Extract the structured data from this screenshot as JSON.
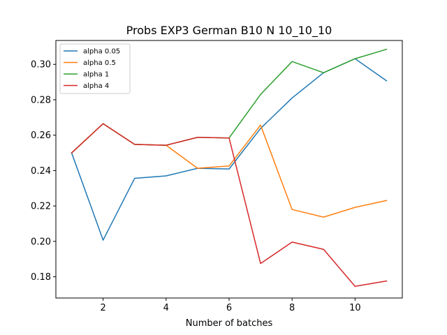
{
  "chart_data": {
    "type": "line",
    "title": "Probs EXP3 German B10 N 10_10_10",
    "xlabel": "Number of batches",
    "ylabel": "",
    "xlim": [
      0.5,
      11.5
    ],
    "ylim": [
      0.168,
      0.3135
    ],
    "xticks": [
      2,
      4,
      6,
      8,
      10
    ],
    "yticks": [
      0.18,
      0.2,
      0.22,
      0.24,
      0.26,
      0.28,
      0.3
    ],
    "ytick_labels": [
      "0.18",
      "0.20",
      "0.22",
      "0.24",
      "0.26",
      "0.28",
      "0.30"
    ],
    "grid": false,
    "legend_position": "top-left",
    "x": [
      1,
      2,
      3,
      4,
      5,
      6,
      7,
      8,
      9,
      10,
      11
    ],
    "series": [
      {
        "name": "alpha 0.05",
        "color": "#1f77b4",
        "values": [
          0.25,
          0.2007,
          0.2356,
          0.237,
          0.2413,
          0.2409,
          0.2638,
          0.281,
          0.2953,
          0.3032,
          0.2907
        ]
      },
      {
        "name": "alpha 0.5",
        "color": "#ff7f0e",
        "values": [
          0.25,
          0.2665,
          0.2548,
          0.2543,
          0.2413,
          0.2426,
          0.2657,
          0.218,
          0.2137,
          0.2192,
          0.2231
        ]
      },
      {
        "name": "alpha 1",
        "color": "#2ca02c",
        "values": [
          0.25,
          0.2665,
          0.2548,
          0.2543,
          0.2588,
          0.2584,
          0.283,
          0.3016,
          0.2953,
          0.3032,
          0.3085
        ]
      },
      {
        "name": "alpha 4",
        "color": "#d62728",
        "values": [
          0.25,
          0.2665,
          0.2548,
          0.2543,
          0.2588,
          0.2584,
          0.1875,
          0.1996,
          0.1955,
          0.1746,
          0.1776
        ]
      }
    ]
  }
}
